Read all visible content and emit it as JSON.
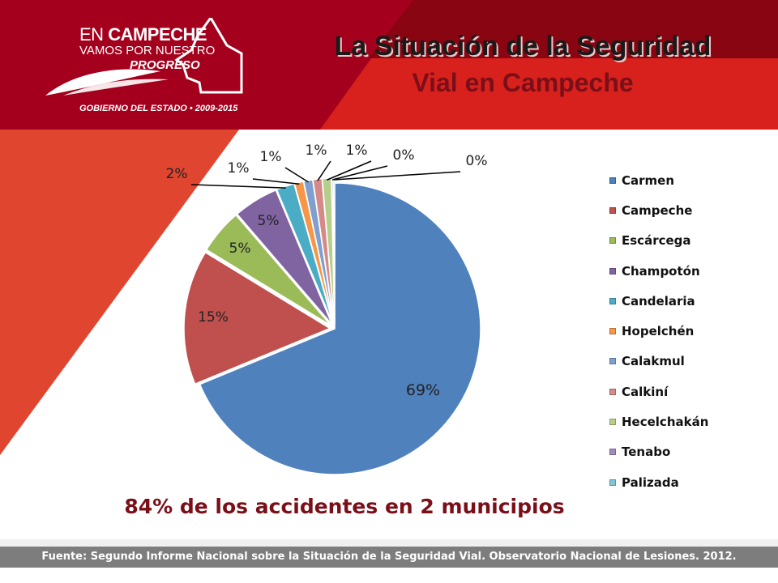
{
  "header": {
    "title_line1": "La Situación de la Seguridad",
    "title_line2": "Vial en Campeche"
  },
  "logo": {
    "line1_prefix": "EN",
    "line1_bold": "CAMPECHE",
    "line2": "VAMOS POR NUESTRO",
    "line3": "PROGRESO",
    "footer": "GOBIERNO DEL ESTADO • 2009-2015"
  },
  "colors": {
    "dark_red": "#a4001d",
    "red": "#d8211d",
    "orange_red": "#e0452f",
    "headline": "#7a0f18"
  },
  "chart_data": {
    "type": "pie",
    "categories": [
      "Carmen",
      "Campeche",
      "Escárcega",
      "Champotón",
      "Candelaria",
      "Hopelchén",
      "Calakmul",
      "Calkiní",
      "Hecelchakán",
      "Tenabo",
      "Palizada"
    ],
    "values": [
      69,
      15,
      5,
      5,
      2,
      1,
      1,
      1,
      1,
      0,
      0
    ],
    "data_labels": [
      "69%",
      "15%",
      "5%",
      "5%",
      "2%",
      "1%",
      "1%",
      "1%",
      "1%",
      "0%",
      "0%"
    ],
    "colors": [
      "#4f81bd",
      "#c0504d",
      "#9bbb59",
      "#8064a2",
      "#4bacc6",
      "#f79646",
      "#7f9fcf",
      "#d68a87",
      "#b5cf8a",
      "#a08cbf",
      "#7fc6d9"
    ],
    "legend_position": "right"
  },
  "headline": "84% de los accidentes en 2 municipios",
  "footer": "Fuente: Segundo Informe Nacional sobre la Situación de la Seguridad Vial. Observatorio Nacional de Lesiones. 2012."
}
